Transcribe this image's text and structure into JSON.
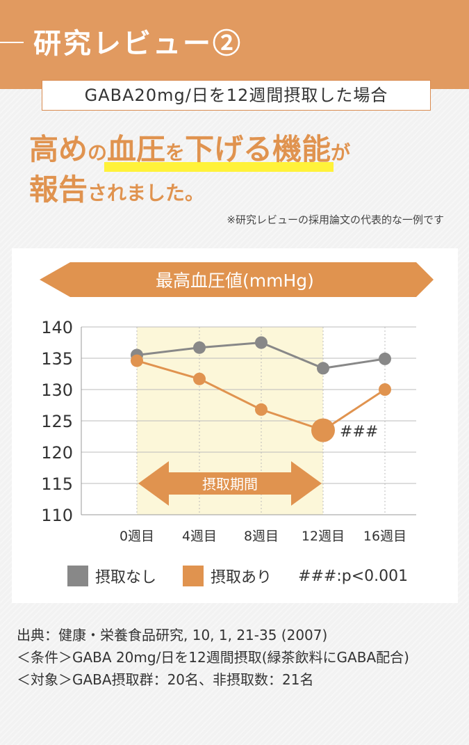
{
  "header": {
    "title": "研究レビュー②"
  },
  "condition": "GABA20mg/日を12週間摂取した場合",
  "headline": {
    "line1_part1": "高め",
    "line1_part2": "の",
    "line1_part3": "血圧",
    "line1_part4": "を",
    "line1_part5": "下げる機能",
    "line1_part6": "が",
    "line2_part1": "報告",
    "line2_part2": "されました。"
  },
  "footnote": "※研究レビューの採用論文の代表的な一例です",
  "chart_data": {
    "type": "line",
    "title": "最高血圧値(mmHg)",
    "categories": [
      "0週目",
      "4週目",
      "8週目",
      "12週目",
      "16週目"
    ],
    "series": [
      {
        "name": "摂取なし",
        "values": [
          135.5,
          136.7,
          137.5,
          133.4,
          134.9
        ],
        "color": "#888888"
      },
      {
        "name": "摂取あり",
        "values": [
          134.6,
          131.7,
          126.8,
          123.5,
          130.0
        ],
        "color": "#e0934f"
      }
    ],
    "yticks": [
      140,
      135,
      130,
      125,
      120,
      115,
      110
    ],
    "ylim": [
      110,
      140
    ],
    "grid": true,
    "intake_period_label": "摂取期間",
    "significance_label": "###",
    "legend_note": "###:p<0.001",
    "legend_position": "bottom"
  },
  "source": {
    "line1": "出典：健康・栄養食品研究, 10, 1, 21-35 (2007)",
    "line2": "＜条件＞GABA 20mg/日を12週間摂取(緑茶飲料にGABA配合)",
    "line3": "＜対象＞GABA摂取群：20名、非摂取数：21名"
  },
  "colors": {
    "accent": "#e19a60",
    "highlight": "#fff23a",
    "period_fill": "#fcf7d9"
  }
}
